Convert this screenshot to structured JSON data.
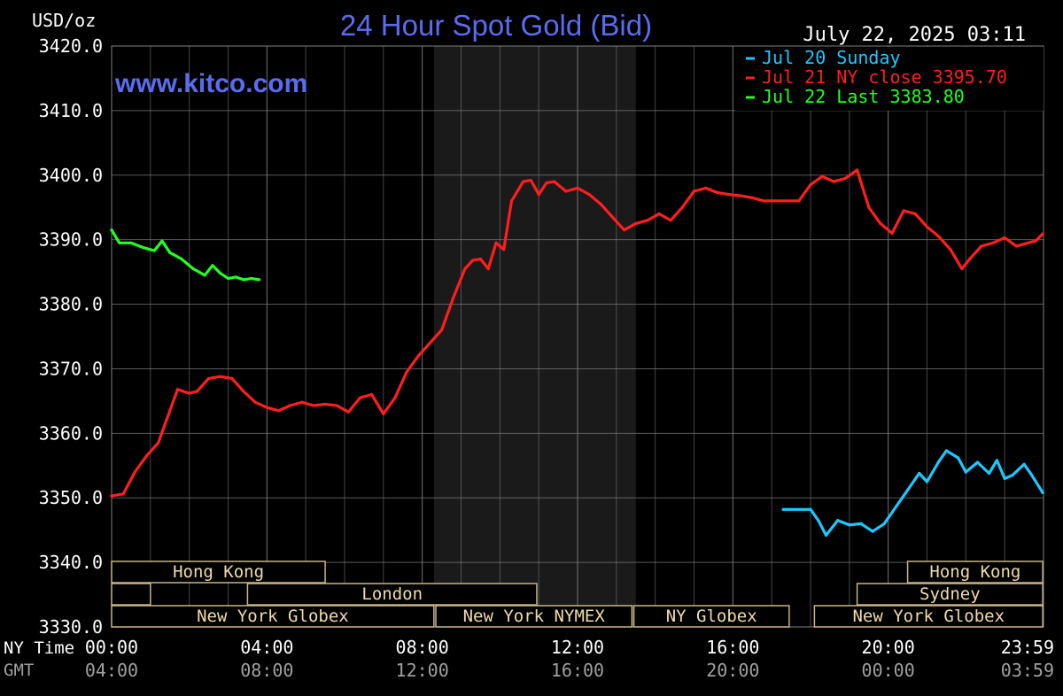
{
  "header": {
    "unit": "USD/oz",
    "title": "24 Hour Spot Gold (Bid)",
    "timestamp": "July 22, 2025 03:11",
    "watermark": "www.kitco.com"
  },
  "colors": {
    "background": "#000000",
    "grid": "#808080",
    "title": "#5a6cf0",
    "axis_text": "#ffffff",
    "gmt_text": "#a0a0a0",
    "sunday": "#1ec8ff",
    "prev_close": "#ff1e1e",
    "last": "#22ff22",
    "session_border": "#c8b488",
    "session_text": "#f0dcaa",
    "shade": "#1a1a1a"
  },
  "axis_labels": {
    "ny_time": "NY Time",
    "gmt": "GMT"
  },
  "chart_data": {
    "type": "line",
    "ylim": [
      3330,
      3420
    ],
    "xlim": [
      0,
      24
    ],
    "y_ticks": [
      "3420.0",
      "3410.0",
      "3400.0",
      "3390.0",
      "3380.0",
      "3370.0",
      "3360.0",
      "3350.0",
      "3340.0",
      "3330.0"
    ],
    "y_tick_values": [
      3420,
      3410,
      3400,
      3390,
      3380,
      3370,
      3360,
      3350,
      3340,
      3330
    ],
    "x_ticks_ny": [
      "00:00",
      "04:00",
      "08:00",
      "12:00",
      "16:00",
      "20:00",
      "23:59"
    ],
    "x_ticks_gmt": [
      "04:00",
      "08:00",
      "12:00",
      "16:00",
      "20:00",
      "00:00",
      "03:59"
    ],
    "x_tick_values": [
      0,
      4,
      8,
      12,
      16,
      20,
      23.98
    ],
    "grid": true,
    "shaded_hours": [
      8.3,
      13.5
    ],
    "legend": {
      "placement": "top-right",
      "entries": [
        {
          "label": "Jul 20 Sunday",
          "color_key": "sunday"
        },
        {
          "label": "Jul 21 NY close 3395.70",
          "color_key": "prev_close"
        },
        {
          "label": "Jul 22 Last 3383.80",
          "color_key": "last"
        }
      ]
    },
    "series": [
      {
        "name": "Jul 20 Sunday",
        "color_key": "sunday",
        "x": [
          17.3,
          18.0,
          18.2,
          18.4,
          18.7,
          19.0,
          19.3,
          19.6,
          19.9,
          20.2,
          20.5,
          20.8,
          21.0,
          21.3,
          21.5,
          21.8,
          22.0,
          22.3,
          22.6,
          22.8,
          23.0,
          23.2,
          23.5,
          23.7,
          23.98
        ],
        "y": [
          3348.2,
          3348.2,
          3346.5,
          3344.2,
          3346.5,
          3345.8,
          3346.0,
          3344.8,
          3346.0,
          3348.6,
          3351.2,
          3353.8,
          3352.5,
          3355.6,
          3357.3,
          3356.2,
          3354.0,
          3355.5,
          3353.8,
          3355.8,
          3353.0,
          3353.5,
          3355.2,
          3353.5,
          3350.8
        ]
      },
      {
        "name": "Jul 21 NY close 3395.70",
        "color_key": "prev_close",
        "x": [
          0.0,
          0.3,
          0.6,
          0.9,
          1.2,
          1.5,
          1.7,
          2.0,
          2.2,
          2.5,
          2.8,
          3.1,
          3.4,
          3.7,
          4.0,
          4.3,
          4.6,
          4.9,
          5.2,
          5.5,
          5.8,
          6.1,
          6.4,
          6.7,
          7.0,
          7.3,
          7.6,
          7.9,
          8.2,
          8.5,
          8.8,
          9.1,
          9.3,
          9.5,
          9.7,
          9.9,
          10.1,
          10.3,
          10.6,
          10.8,
          11.0,
          11.2,
          11.4,
          11.7,
          12.0,
          12.3,
          12.6,
          12.9,
          13.2,
          13.5,
          13.8,
          14.1,
          14.4,
          14.7,
          15.0,
          15.3,
          15.6,
          15.9,
          16.2,
          16.5,
          16.8,
          17.1,
          17.4,
          17.7,
          18.0,
          18.3,
          18.6,
          18.9,
          19.2,
          19.5,
          19.8,
          20.1,
          20.4,
          20.7,
          21.0,
          21.3,
          21.6,
          21.9,
          22.1,
          22.4,
          22.7,
          23.0,
          23.3,
          23.6,
          23.8,
          23.98
        ],
        "y": [
          3350.3,
          3350.6,
          3354.0,
          3356.5,
          3358.5,
          3363.5,
          3366.8,
          3366.2,
          3366.5,
          3368.5,
          3368.8,
          3368.5,
          3366.5,
          3364.8,
          3364.0,
          3363.5,
          3364.3,
          3364.8,
          3364.3,
          3364.5,
          3364.3,
          3363.3,
          3365.5,
          3366.0,
          3363.0,
          3365.5,
          3369.5,
          3372.0,
          3374.0,
          3376.0,
          3381.0,
          3385.5,
          3386.8,
          3387.0,
          3385.5,
          3389.5,
          3388.5,
          3396.0,
          3399.0,
          3399.2,
          3397.0,
          3398.8,
          3399.0,
          3397.5,
          3398.0,
          3397.0,
          3395.5,
          3393.5,
          3391.5,
          3392.5,
          3393.0,
          3394.0,
          3393.0,
          3395.0,
          3397.5,
          3398.0,
          3397.3,
          3397.0,
          3396.8,
          3396.5,
          3396.0,
          3396.0,
          3396.0,
          3396.0,
          3398.5,
          3399.8,
          3399.0,
          3399.5,
          3400.8,
          3395.0,
          3392.5,
          3391.0,
          3394.5,
          3394.0,
          3392.0,
          3390.5,
          3388.5,
          3385.5,
          3387.0,
          3389.0,
          3389.5,
          3390.3,
          3389.0,
          3389.5,
          3389.8,
          3390.9
        ]
      },
      {
        "name": "Jul 22 Last 3383.80",
        "color_key": "last",
        "x": [
          0.0,
          0.2,
          0.5,
          0.8,
          1.1,
          1.3,
          1.5,
          1.8,
          2.1,
          2.4,
          2.6,
          2.8,
          3.0,
          3.2,
          3.4,
          3.6,
          3.8
        ],
        "y": [
          3391.5,
          3389.5,
          3389.5,
          3388.8,
          3388.3,
          3389.8,
          3388.0,
          3387.0,
          3385.5,
          3384.5,
          3386.0,
          3384.8,
          3384.0,
          3384.2,
          3383.8,
          3384.0,
          3383.8
        ]
      }
    ],
    "sessions": [
      {
        "label": "Hong Kong",
        "row": 0,
        "start": 0.0,
        "end": 5.5
      },
      {
        "label": "",
        "row": 1,
        "start": 0.0,
        "end": 1.0
      },
      {
        "label": "London",
        "row": 1,
        "start": 3.5,
        "end": 10.95
      },
      {
        "label": "New York Globex",
        "row": 2,
        "start": 0.0,
        "end": 8.3
      },
      {
        "label": "New York NYMEX",
        "row": 2,
        "start": 8.35,
        "end": 13.4
      },
      {
        "label": "NY Globex",
        "row": 2,
        "start": 13.45,
        "end": 17.45
      },
      {
        "label": "Hong Kong",
        "row": 0,
        "start": 20.5,
        "end": 23.98
      },
      {
        "label": "Sydney",
        "row": 1,
        "start": 19.2,
        "end": 23.98
      },
      {
        "label": "New York Globex",
        "row": 2,
        "start": 18.1,
        "end": 23.98
      }
    ]
  }
}
